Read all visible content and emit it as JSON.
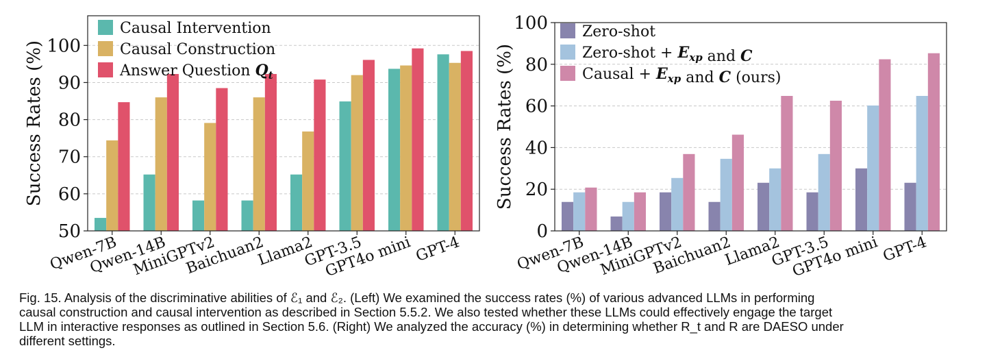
{
  "chart_data": [
    {
      "type": "bar",
      "panel": "left",
      "ylabel": "Success Rates (%)",
      "ylim": [
        50,
        108
      ],
      "yticks": [
        50,
        60,
        70,
        80,
        90,
        100
      ],
      "grid": true,
      "legend_position": "top-left",
      "categories": [
        "Qwen-7B",
        "Qwen-14B",
        "MiniGPTv2",
        "Baichuan2",
        "Llama2",
        "GPT-3.5",
        "GPT4o mini",
        "GPT-4"
      ],
      "series": [
        {
          "name": "Causal Intervention",
          "color": "#5bb8ad",
          "values": [
            53.5,
            65.2,
            58.2,
            58.2,
            65.2,
            84.9,
            93.7,
            97.6
          ]
        },
        {
          "name": "Causal Construction",
          "color": "#d9b263",
          "values": [
            74.4,
            86.0,
            79.1,
            86.0,
            76.8,
            92.0,
            94.6,
            95.3
          ]
        },
        {
          "name": "Answer Question Q_t",
          "color": "#e0526b",
          "values": [
            84.7,
            92.3,
            88.5,
            92.3,
            90.8,
            96.1,
            99.2,
            98.5
          ]
        }
      ]
    },
    {
      "type": "bar",
      "panel": "right",
      "ylabel": "Success Rates (%)",
      "ylim": [
        0,
        100
      ],
      "yticks": [
        0,
        20,
        40,
        60,
        80,
        100
      ],
      "grid": true,
      "legend_position": "top-left",
      "categories": [
        "Qwen-7B",
        "Qwen-14B",
        "MiniGPTv2",
        "Baichuan2",
        "Llama2",
        "GPT-3.5",
        "GPT4o mini",
        "GPT-4"
      ],
      "series": [
        {
          "name": "Zero-shot",
          "color": "#8884ad",
          "values": [
            13.9,
            6.9,
            18.5,
            13.9,
            23.1,
            18.5,
            30.0,
            23.1
          ]
        },
        {
          "name": "Zero-shot + E_xp and C",
          "color": "#a4c3de",
          "values": [
            18.5,
            13.9,
            25.4,
            34.6,
            30.0,
            36.9,
            60.2,
            64.8
          ]
        },
        {
          "name": "Causal + E_xp and C (ours)",
          "color": "#cf88a9",
          "values": [
            20.8,
            18.5,
            36.9,
            46.2,
            64.8,
            62.5,
            82.4,
            85.3
          ]
        }
      ]
    }
  ],
  "caption": {
    "line1": "Fig. 15. Analysis of the discriminative abilities of ℰ₁ and ℰ₂. (Left) We examined the success rates (%) of various advanced LLMs in performing",
    "line2": "causal construction and causal intervention as described in Section 5.5.2. We also tested whether these LLMs could effectively engage the target",
    "line3": "LLM in interactive responses as outlined in Section 5.6. (Right) We analyzed the accuracy (%) in determining whether R_t and R are DAESO under",
    "line4": "different settings."
  }
}
